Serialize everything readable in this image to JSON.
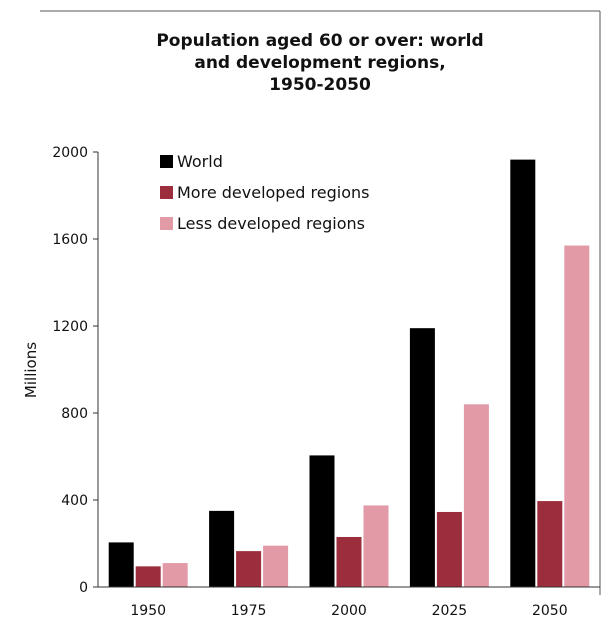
{
  "chart_data": {
    "type": "bar",
    "title_lines": [
      "Population aged 60 or over: world",
      "and development regions,",
      "1950-2050"
    ],
    "ylabel": "Millions",
    "xlabel": "",
    "categories": [
      "1950",
      "1975",
      "2000",
      "2025",
      "2050"
    ],
    "ylim": [
      0,
      2000
    ],
    "yticks": [
      "0",
      "400",
      "800",
      "1200",
      "1600",
      "2000"
    ],
    "grid": false,
    "legend_position": "top-left",
    "series": [
      {
        "name": "World",
        "color": "#000000",
        "values": [
          205,
          350,
          605,
          1190,
          1965
        ]
      },
      {
        "name": "More developed regions",
        "color": "#9b2d3d",
        "values": [
          95,
          165,
          230,
          345,
          395
        ]
      },
      {
        "name": "Less developed regions",
        "color": "#e29aa6",
        "values": [
          110,
          190,
          375,
          840,
          1570
        ]
      }
    ]
  }
}
